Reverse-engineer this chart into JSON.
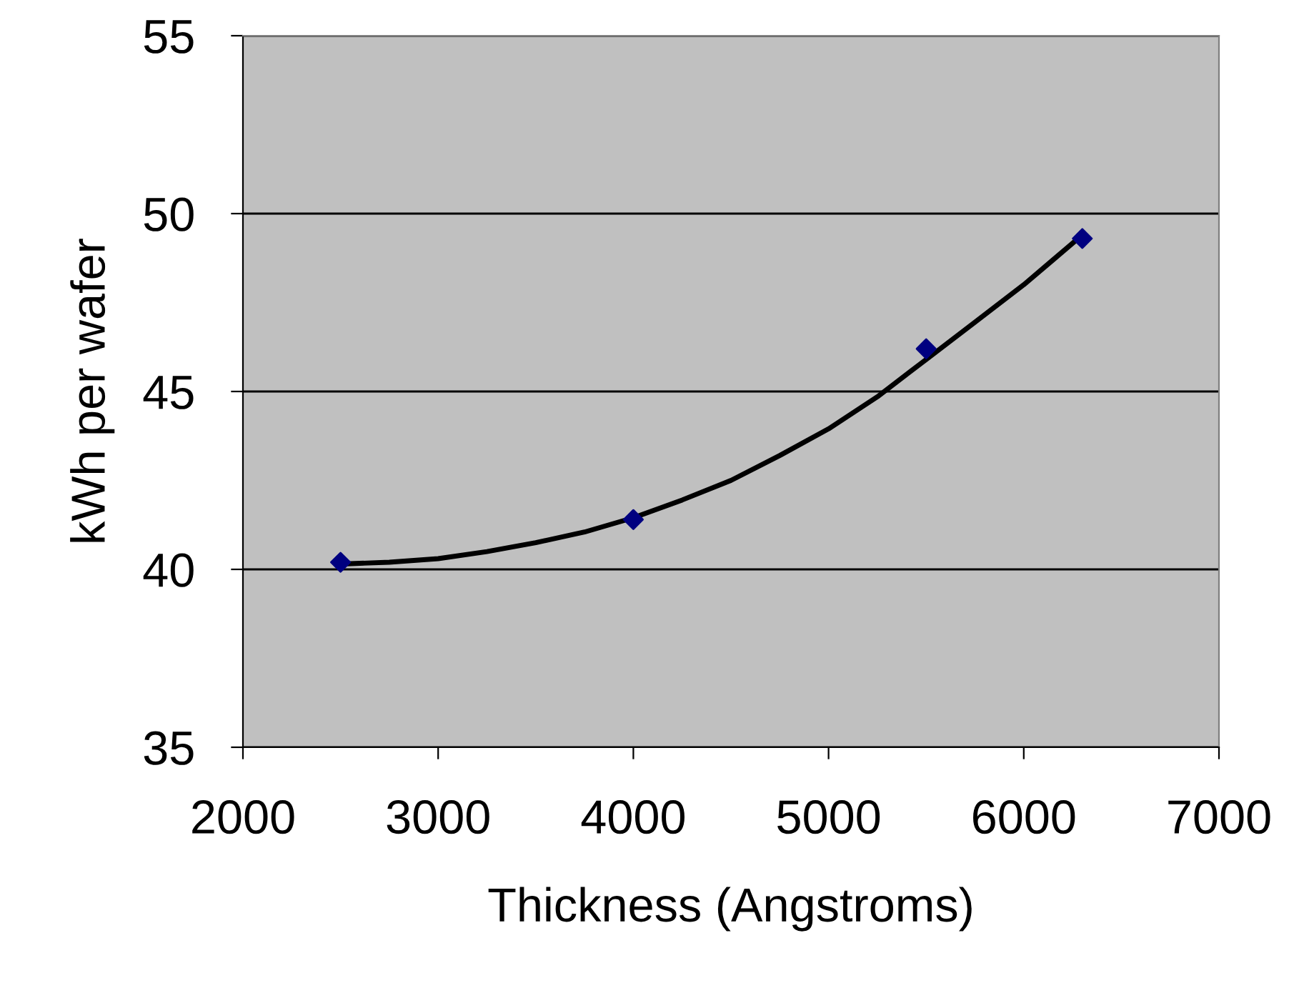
{
  "chart_data": {
    "type": "scatter",
    "xlabel": "Thickness (Angstroms)",
    "ylabel": "kWh per wafer",
    "xlim": [
      2000,
      7000
    ],
    "ylim": [
      35,
      55
    ],
    "xticks": [
      2000,
      3000,
      4000,
      5000,
      6000,
      7000
    ],
    "yticks": [
      35,
      40,
      45,
      50,
      55
    ],
    "grid": "y",
    "legend": false,
    "series": [
      {
        "type": "line",
        "color": "#000000",
        "marker": "none",
        "x": [
          2500,
          2750,
          3000,
          3250,
          3500,
          3750,
          4000,
          4250,
          4500,
          4750,
          5000,
          5250,
          5500,
          5750,
          6000,
          6150,
          6300
        ],
        "values": [
          40.15,
          40.2,
          40.3,
          40.5,
          40.75,
          41.05,
          41.45,
          41.95,
          42.5,
          43.2,
          43.95,
          44.85,
          45.9,
          46.95,
          48.0,
          48.7,
          49.4
        ]
      },
      {
        "color": "#000080",
        "marker": "diamond",
        "x": [
          2500,
          4000,
          5500,
          6300
        ],
        "values": [
          40.2,
          41.4,
          46.2,
          49.3
        ]
      }
    ]
  }
}
